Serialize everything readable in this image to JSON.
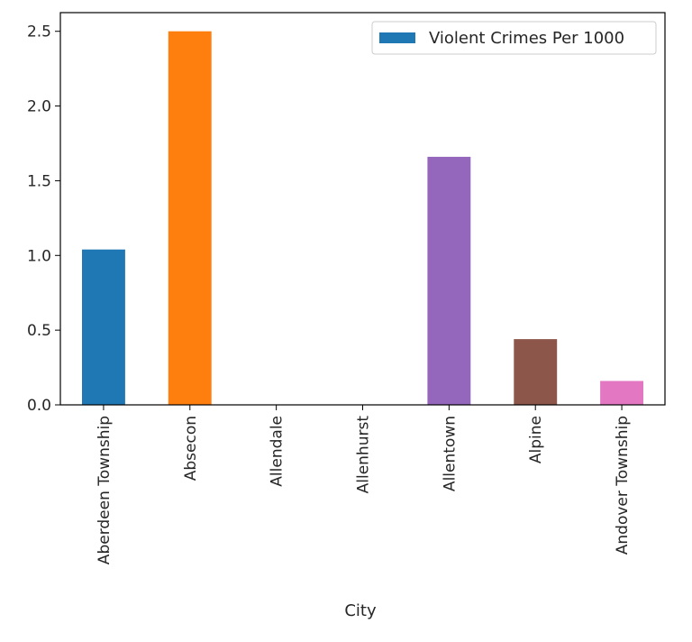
{
  "chart_data": {
    "type": "bar",
    "categories": [
      "Aberdeen Township",
      "Absecon",
      "Allendale",
      "Allenhurst",
      "Allentown",
      "Alpine",
      "Andover Township"
    ],
    "values": [
      1.04,
      2.5,
      0.0,
      0.0,
      1.66,
      0.44,
      0.16
    ],
    "bar_colors": [
      "#1f77b4",
      "#ff7f0e",
      "#2ca02c",
      "#d62728",
      "#9467bd",
      "#8c564b",
      "#e377c2"
    ],
    "series": [
      {
        "name": "Violent Crimes Per 1000",
        "color": "#1f77b4"
      }
    ],
    "title": "",
    "xlabel": "City",
    "ylabel": "",
    "ylim": [
      0,
      2.625
    ],
    "yticks": [
      0.0,
      0.5,
      1.0,
      1.5,
      2.0,
      2.5
    ],
    "ytick_labels": [
      "0.0",
      "0.5",
      "1.0",
      "1.5",
      "2.0",
      "2.5"
    ],
    "grid": false,
    "legend_position": "top-right"
  }
}
